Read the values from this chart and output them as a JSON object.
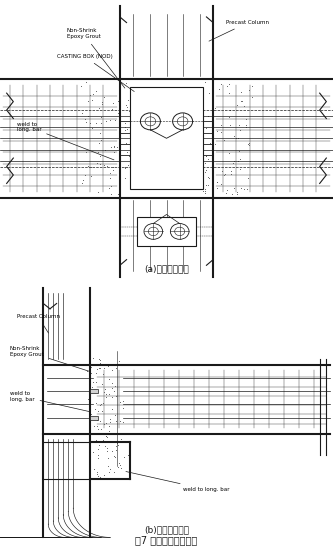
{
  "title_a": "(a)中柱梁柱节点",
  "title_b": "(b)边柱梁柱节点",
  "caption": "图7 刚接梁柱节点示意",
  "label_precast_col_a": "Precast Column",
  "label_non_shrink_a": "Non-Shrink\nEpoxy Grout",
  "label_casting_box": "CASTING BOX (NOD)",
  "label_weld_long_a": "weld to\nlong. bar",
  "label_precast_col_b": "Precast Column",
  "label_non_shrink_b": "Non-Shrink\nEpoxy Grout",
  "label_weld_long_b": "weld to\nlong. bar",
  "label_weld_long_bar_b": "weld to long. bar",
  "bg_color": "#ffffff",
  "line_color": "#1a1a1a",
  "font_size_label": 4.0,
  "font_size_caption": 7.0,
  "font_size_subtitle": 6.5
}
